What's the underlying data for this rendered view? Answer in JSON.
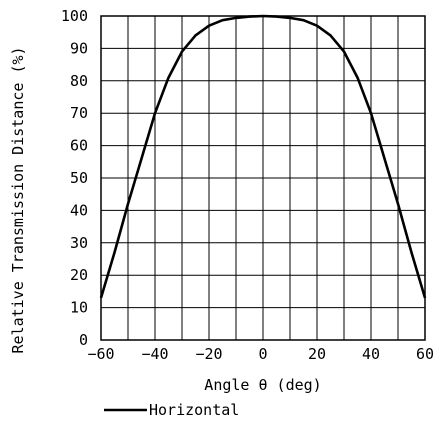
{
  "chart_data": {
    "type": "line",
    "title": "",
    "xlabel": "Angle θ (deg)",
    "ylabel": "Relative Transmission Distance (%)",
    "xlim": [
      -60,
      60
    ],
    "ylim": [
      0,
      100
    ],
    "x_ticks": [
      "−60",
      "−40",
      "−20",
      "0",
      "20",
      "40",
      "60"
    ],
    "y_ticks": [
      "0",
      "10",
      "20",
      "30",
      "40",
      "50",
      "60",
      "70",
      "80",
      "90",
      "100"
    ],
    "grid": true,
    "legend": "bottom",
    "series": [
      {
        "name": "Horizontal",
        "color": "#000000",
        "x": [
          -60,
          -55,
          -50,
          -45,
          -40,
          -35,
          -30,
          -25,
          -20,
          -15,
          -10,
          -5,
          0,
          5,
          10,
          15,
          20,
          25,
          30,
          35,
          40,
          45,
          50,
          55,
          60
        ],
        "y": [
          13,
          27,
          42,
          56,
          70,
          81,
          89,
          94,
          97,
          98.7,
          99.4,
          99.8,
          100,
          99.8,
          99.4,
          98.7,
          97,
          94,
          89,
          81,
          70,
          56,
          42,
          27,
          13
        ]
      }
    ]
  }
}
